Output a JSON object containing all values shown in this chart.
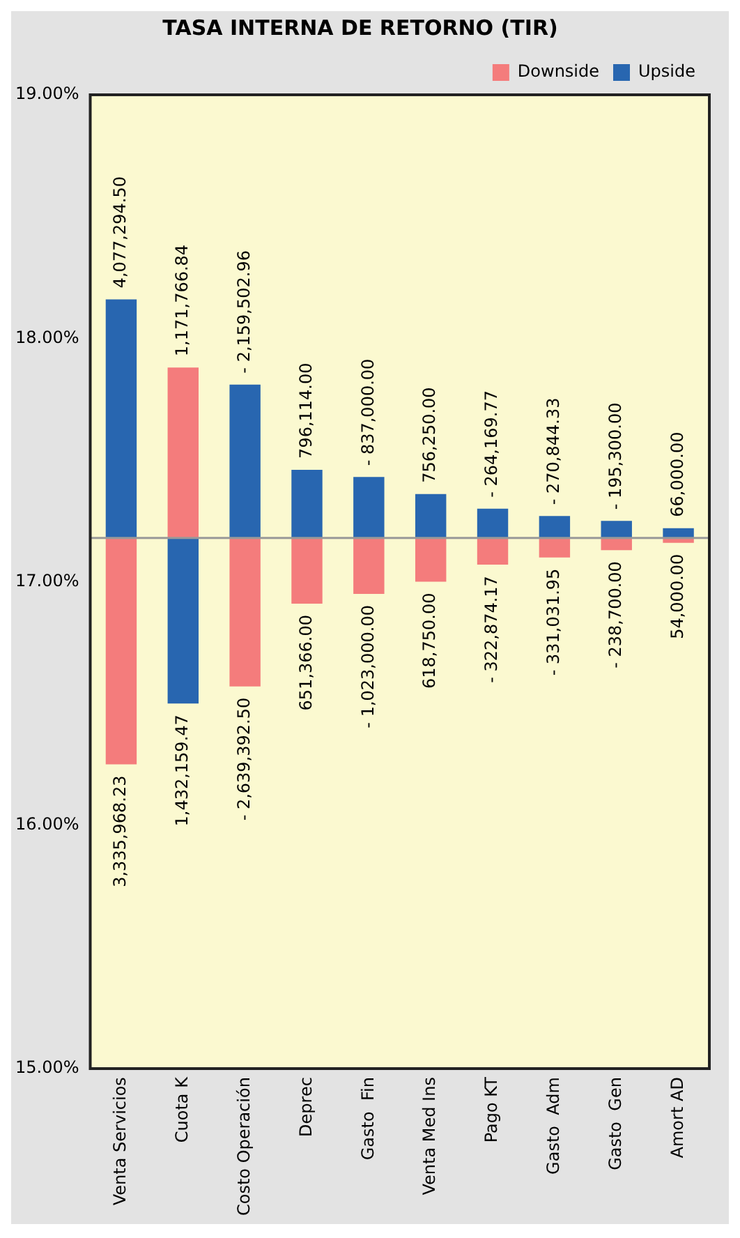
{
  "chart_data": {
    "type": "bar",
    "title": "TASA INTERNA DE RETORNO (TIR)",
    "categories": [
      "Venta Servicios",
      "Cuota K",
      "Costo Operación",
      "Deprec",
      "Gasto  Fin",
      "Venta Med Ins",
      "Pago KT",
      "Gasto  Adm",
      "Gasto  Gen",
      "Amort AD"
    ],
    "series": [
      {
        "name": "Downside",
        "color": "#f47c7c",
        "base": [
          17.18,
          17.18,
          17.18,
          17.18,
          17.18,
          17.18,
          17.18,
          17.18,
          17.18,
          17.18
        ],
        "values": [
          -0.93,
          0.7,
          -0.61,
          -0.27,
          -0.23,
          -0.18,
          -0.11,
          -0.08,
          -0.05,
          -0.02
        ]
      },
      {
        "name": "Upside",
        "color": "#2866b0",
        "base": [
          17.18,
          17.18,
          17.18,
          17.18,
          17.18,
          17.18,
          17.18,
          17.18,
          17.18,
          17.18
        ],
        "values": [
          0.98,
          -0.68,
          0.63,
          0.28,
          0.25,
          0.18,
          0.12,
          0.09,
          0.07,
          0.04
        ]
      }
    ],
    "annotations": [
      {
        "text": "4,077,294.50",
        "x": "Venta Servicios",
        "y": 18.16
      },
      {
        "text": "3,335,968.23",
        "x": "Venta Servicios",
        "y": 16.25
      },
      {
        "text": "1,171,766.84",
        "x": "Cuota K",
        "y": 17.88
      },
      {
        "text": "1,432,159.47",
        "x": "Cuota K",
        "y": 16.5
      },
      {
        "text": "- 2,159,502.96",
        "x": "Costo Operación",
        "y": 17.81
      },
      {
        "text": "- 2,639,392.50",
        "x": "Costo Operación",
        "y": 16.57
      },
      {
        "text": "796,114.00",
        "x": "Deprec",
        "y": 17.46
      },
      {
        "text": "651,366.00",
        "x": "Deprec",
        "y": 16.91
      },
      {
        "text": "- 837,000.00",
        "x": "Gasto  Fin",
        "y": 17.43
      },
      {
        "text": "- 1,023,000.00",
        "x": "Gasto  Fin",
        "y": 16.95
      },
      {
        "text": "756,250.00",
        "x": "Venta Med Ins",
        "y": 17.36
      },
      {
        "text": "618,750.00",
        "x": "Venta Med Ins",
        "y": 17.0
      },
      {
        "text": "- 264,169.77",
        "x": "Pago KT",
        "y": 17.3
      },
      {
        "text": "- 322,874.17",
        "x": "Pago KT",
        "y": 17.07
      },
      {
        "text": "- 270,844.33",
        "x": "Gasto  Adm",
        "y": 17.27
      },
      {
        "text": "- 331,031.95",
        "x": "Gasto  Adm",
        "y": 17.1
      },
      {
        "text": "- 195,300.00",
        "x": "Gasto  Gen",
        "y": 17.25
      },
      {
        "text": "- 238,700.00",
        "x": "Gasto  Gen",
        "y": 17.13
      },
      {
        "text": "66,000.00",
        "x": "Amort AD",
        "y": 17.22
      },
      {
        "text": "54,000.00",
        "x": "Amort AD",
        "y": 17.16
      }
    ],
    "ylim": [
      15,
      19
    ],
    "yticks": [
      {
        "value": 15,
        "label": "15.00%"
      },
      {
        "value": 16,
        "label": "16.00%"
      },
      {
        "value": 17,
        "label": "17.00%"
      },
      {
        "value": 18,
        "label": "18.00%"
      },
      {
        "value": 19,
        "label": "19.00%"
      }
    ],
    "ref_lines": [
      {
        "axis": "y",
        "value": 17.18,
        "color": "#999999"
      }
    ],
    "grid": false,
    "legend": "top right"
  }
}
